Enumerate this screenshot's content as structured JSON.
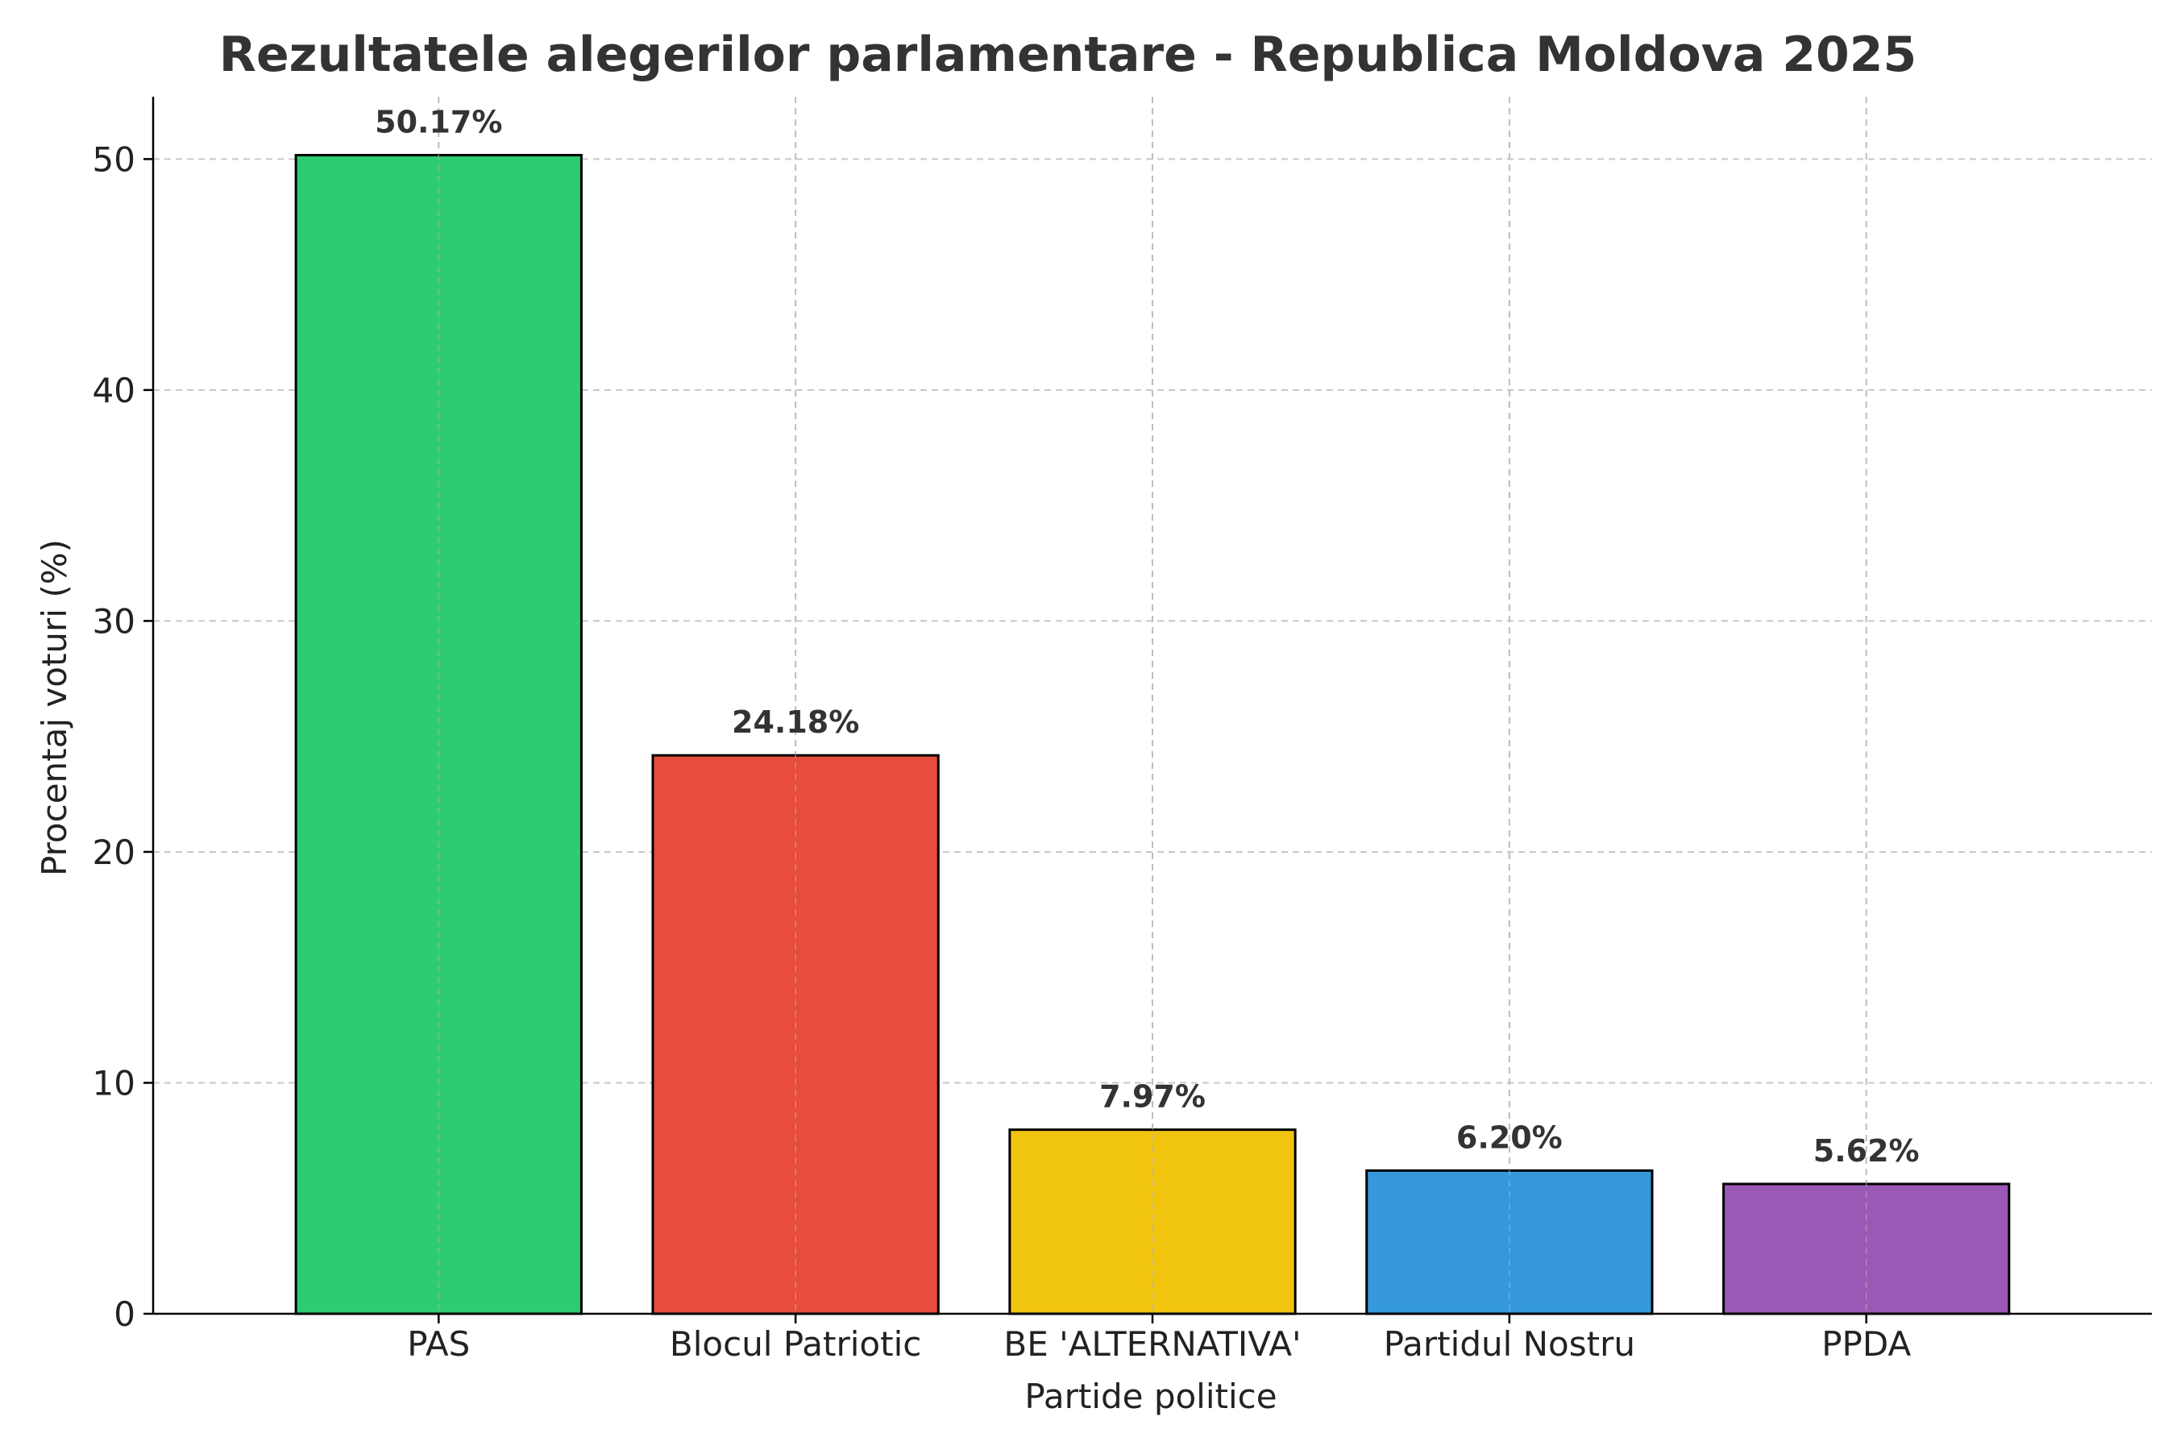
{
  "chart_data": {
    "type": "bar",
    "title": "Rezultatele alegerilor parlamentare - Republica Moldova 2025",
    "xlabel": "Partide politice",
    "ylabel": "Procentaj voturi (%)",
    "categories": [
      "PAS",
      "Blocul Patriotic",
      "BE 'ALTERNATIVA'",
      "Partidul Nostru",
      "PPDA"
    ],
    "values": [
      50.17,
      24.18,
      7.97,
      6.2,
      5.62
    ],
    "value_labels": [
      "50.17%",
      "24.18%",
      "7.97%",
      "6.20%",
      "5.62%"
    ],
    "colors": [
      "#2ecc71",
      "#e74c3c",
      "#f1c40f",
      "#3498db",
      "#9b59b6"
    ],
    "ylim": [
      0,
      52.7
    ],
    "yticks": [
      0,
      10,
      20,
      30,
      40,
      50
    ],
    "ytick_labels": [
      "0",
      "10",
      "20",
      "30",
      "40",
      "50"
    ],
    "grid": true,
    "legend": false
  }
}
